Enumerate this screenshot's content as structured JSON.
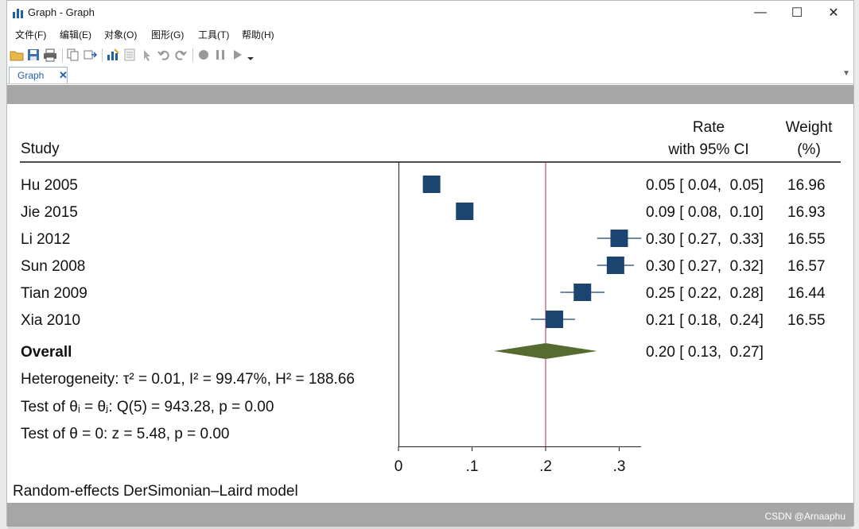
{
  "window": {
    "title": "Graph - Graph",
    "controls": {
      "minimize": "—",
      "maximize": "☐",
      "close": "✕"
    }
  },
  "menu": [
    "文件(F)",
    "编辑(E)",
    "对象(O)",
    "图形(G)",
    "工具(T)",
    "帮助(H)"
  ],
  "toolbar_icons": [
    "open-icon",
    "save-icon",
    "print-icon",
    "copy-icon",
    "copy-text-icon",
    "graph-editor-icon",
    "properties-icon",
    "pointer-icon",
    "undo-icon",
    "redo-icon",
    "record-icon",
    "pause-icon",
    "play-icon",
    "dropdown-icon"
  ],
  "tab": {
    "label": "Graph",
    "close": "✕"
  },
  "forest": {
    "header": {
      "study": "Study",
      "rate_line1": "Rate",
      "rate_line2": "with 95% CI",
      "weight_line1": "Weight",
      "weight_line2": "(%)"
    },
    "rows": [
      {
        "study": "Hu 2005",
        "ci_text": "0.05 [ 0.04,  0.05]",
        "weight": "16.96"
      },
      {
        "study": "Jie 2015",
        "ci_text": "0.09 [ 0.08,  0.10]",
        "weight": "16.93"
      },
      {
        "study": "Li 2012",
        "ci_text": "0.30 [ 0.27,  0.33]",
        "weight": "16.55"
      },
      {
        "study": "Sun 2008",
        "ci_text": "0.30 [ 0.27,  0.32]",
        "weight": "16.57"
      },
      {
        "study": "Tian 2009",
        "ci_text": "0.25 [ 0.22,  0.28]",
        "weight": "16.44"
      },
      {
        "study": "Xia 2010",
        "ci_text": "0.21 [ 0.18,  0.24]",
        "weight": "16.55"
      }
    ],
    "overall": {
      "label": "Overall",
      "ci_text": "0.20 [ 0.13,  0.27]"
    },
    "stats": [
      "Heterogeneity: τ² = 0.01, I² = 99.47%, H² = 188.66",
      "Test of θᵢ = θⱼ: Q(5) = 943.28, p = 0.00",
      "Test of θ = 0: z = 5.48, p = 0.00"
    ],
    "footnote": "Random-effects DerSimonian–Laird model"
  },
  "chart_data": {
    "type": "forest",
    "title": "",
    "xlim": [
      0,
      0.33
    ],
    "ticks": [
      0,
      0.1,
      0.2,
      0.3
    ],
    "tick_labels": [
      "0",
      ".1",
      ".2",
      ".3"
    ],
    "reference_line": 0.2,
    "series": [
      {
        "name": "Hu 2005",
        "est": 0.045,
        "lo": 0.04,
        "hi": 0.05
      },
      {
        "name": "Jie 2015",
        "est": 0.09,
        "lo": 0.08,
        "hi": 0.1
      },
      {
        "name": "Li 2012",
        "est": 0.3,
        "lo": 0.27,
        "hi": 0.33
      },
      {
        "name": "Sun 2008",
        "est": 0.295,
        "lo": 0.27,
        "hi": 0.32
      },
      {
        "name": "Tian 2009",
        "est": 0.25,
        "lo": 0.22,
        "hi": 0.28
      },
      {
        "name": "Xia 2010",
        "est": 0.212,
        "lo": 0.18,
        "hi": 0.24
      }
    ],
    "overall": {
      "est": 0.2,
      "lo": 0.13,
      "hi": 0.27
    },
    "colors": {
      "marker": "#1b4470",
      "diamond": "#556b2f",
      "refline": "#b0285a",
      "axis": "#222222"
    }
  },
  "watermark": "CSDN @Arnaaphu"
}
